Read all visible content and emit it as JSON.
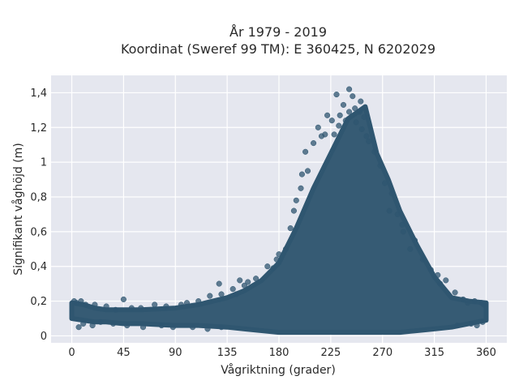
{
  "chart_data": {
    "type": "scatter",
    "title_line1": "År 1979 - 2019",
    "title_line2": "Koordinat (Sweref 99 TM): E 360425, N 6202029",
    "xlabel": "Vågriktning (grader)",
    "ylabel": "Signifikant våghöjd (m)",
    "xlim": [
      -18,
      378
    ],
    "ylim": [
      -0.04,
      1.5
    ],
    "xticks": [
      0,
      45,
      90,
      135,
      180,
      225,
      270,
      315,
      360
    ],
    "xtick_labels": [
      "0",
      "45",
      "90",
      "135",
      "180",
      "225",
      "270",
      "315",
      "360"
    ],
    "yticks": [
      0,
      0.2,
      0.4,
      0.6,
      0.8,
      1.0,
      1.2,
      1.4
    ],
    "ytick_labels": [
      "0",
      "0,2",
      "0,4",
      "0,6",
      "0,8",
      "1",
      "1,2",
      "1,4"
    ],
    "grid": true,
    "marker_color": "#2f5670",
    "plot_background": "#e5e7ef",
    "envelope": {
      "direction": [
        0,
        10,
        20,
        30,
        45,
        60,
        90,
        110,
        135,
        150,
        165,
        180,
        195,
        210,
        225,
        240,
        255,
        265,
        275,
        285,
        300,
        315,
        330,
        345,
        360
      ],
      "upper_height": [
        0.19,
        0.18,
        0.16,
        0.15,
        0.15,
        0.15,
        0.16,
        0.18,
        0.22,
        0.26,
        0.32,
        0.42,
        0.62,
        0.85,
        1.05,
        1.25,
        1.32,
        1.05,
        0.9,
        0.72,
        0.52,
        0.34,
        0.22,
        0.2,
        0.19
      ],
      "lower_height": [
        0.1,
        0.09,
        0.08,
        0.08,
        0.07,
        0.07,
        0.06,
        0.06,
        0.05,
        0.04,
        0.03,
        0.02,
        0.02,
        0.02,
        0.02,
        0.02,
        0.02,
        0.02,
        0.02,
        0.02,
        0.03,
        0.04,
        0.05,
        0.07,
        0.09
      ]
    },
    "points": [
      {
        "x": 230,
        "y": 1.39
      },
      {
        "x": 241,
        "y": 1.42
      },
      {
        "x": 244,
        "y": 1.38
      },
      {
        "x": 236,
        "y": 1.33
      },
      {
        "x": 251,
        "y": 1.35
      },
      {
        "x": 222,
        "y": 1.27
      },
      {
        "x": 226,
        "y": 1.24
      },
      {
        "x": 232,
        "y": 1.21
      },
      {
        "x": 228,
        "y": 1.16
      },
      {
        "x": 250,
        "y": 1.29
      },
      {
        "x": 247,
        "y": 1.23
      },
      {
        "x": 252,
        "y": 1.19
      },
      {
        "x": 214,
        "y": 1.2
      },
      {
        "x": 217,
        "y": 1.15
      },
      {
        "x": 203,
        "y": 1.06
      },
      {
        "x": 210,
        "y": 1.11
      },
      {
        "x": 220,
        "y": 1.16
      },
      {
        "x": 258,
        "y": 1.12
      },
      {
        "x": 263,
        "y": 1.06
      },
      {
        "x": 256,
        "y": 1.15
      },
      {
        "x": 268,
        "y": 0.98
      },
      {
        "x": 241,
        "y": 1.29
      },
      {
        "x": 238,
        "y": 1.24
      },
      {
        "x": 246,
        "y": 1.31
      },
      {
        "x": 254,
        "y": 1.26
      },
      {
        "x": 233,
        "y": 1.27
      },
      {
        "x": 278,
        "y": 0.82
      },
      {
        "x": 272,
        "y": 0.88
      },
      {
        "x": 276,
        "y": 0.72
      },
      {
        "x": 283,
        "y": 0.7
      },
      {
        "x": 288,
        "y": 0.6
      },
      {
        "x": 287,
        "y": 0.64
      },
      {
        "x": 294,
        "y": 0.5
      },
      {
        "x": 305,
        "y": 0.44
      },
      {
        "x": 312,
        "y": 0.38
      },
      {
        "x": 318,
        "y": 0.35
      },
      {
        "x": 325,
        "y": 0.32
      },
      {
        "x": 320,
        "y": 0.3
      },
      {
        "x": 298,
        "y": 0.55
      },
      {
        "x": 200,
        "y": 0.93
      },
      {
        "x": 205,
        "y": 0.95
      },
      {
        "x": 195,
        "y": 0.78
      },
      {
        "x": 190,
        "y": 0.62
      },
      {
        "x": 193,
        "y": 0.72
      },
      {
        "x": 199,
        "y": 0.85
      },
      {
        "x": 178,
        "y": 0.44
      },
      {
        "x": 170,
        "y": 0.4
      },
      {
        "x": 186,
        "y": 0.5
      },
      {
        "x": 180,
        "y": 0.47
      },
      {
        "x": 175,
        "y": 0.39
      },
      {
        "x": 160,
        "y": 0.33
      },
      {
        "x": 153,
        "y": 0.31
      },
      {
        "x": 150,
        "y": 0.29
      },
      {
        "x": 146,
        "y": 0.32
      },
      {
        "x": 140,
        "y": 0.27
      },
      {
        "x": 130,
        "y": 0.24
      },
      {
        "x": 120,
        "y": 0.23
      },
      {
        "x": 110,
        "y": 0.2
      },
      {
        "x": 100,
        "y": 0.19
      },
      {
        "x": 95,
        "y": 0.18
      },
      {
        "x": 82,
        "y": 0.17
      },
      {
        "x": 72,
        "y": 0.18
      },
      {
        "x": 60,
        "y": 0.16
      },
      {
        "x": 52,
        "y": 0.16
      },
      {
        "x": 45,
        "y": 0.21
      },
      {
        "x": 38,
        "y": 0.15
      },
      {
        "x": 30,
        "y": 0.17
      },
      {
        "x": 20,
        "y": 0.18
      },
      {
        "x": 12,
        "y": 0.18
      },
      {
        "x": 8,
        "y": 0.2
      },
      {
        "x": 4,
        "y": 0.19
      },
      {
        "x": 2,
        "y": 0.2
      },
      {
        "x": 6,
        "y": 0.05
      },
      {
        "x": 10,
        "y": 0.07
      },
      {
        "x": 18,
        "y": 0.06
      },
      {
        "x": 25,
        "y": 0.08
      },
      {
        "x": 36,
        "y": 0.07
      },
      {
        "x": 48,
        "y": 0.06
      },
      {
        "x": 62,
        "y": 0.05
      },
      {
        "x": 78,
        "y": 0.06
      },
      {
        "x": 88,
        "y": 0.05
      },
      {
        "x": 105,
        "y": 0.05
      },
      {
        "x": 118,
        "y": 0.04
      },
      {
        "x": 130,
        "y": 0.05
      },
      {
        "x": 344,
        "y": 0.19
      },
      {
        "x": 350,
        "y": 0.2
      },
      {
        "x": 356,
        "y": 0.19
      },
      {
        "x": 358,
        "y": 0.18
      },
      {
        "x": 340,
        "y": 0.21
      },
      {
        "x": 333,
        "y": 0.25
      },
      {
        "x": 352,
        "y": 0.06
      },
      {
        "x": 357,
        "y": 0.08
      },
      {
        "x": 347,
        "y": 0.07
      },
      {
        "x": 335,
        "y": 0.06
      },
      {
        "x": 128,
        "y": 0.3
      },
      {
        "x": 143,
        "y": 0.24
      }
    ]
  }
}
